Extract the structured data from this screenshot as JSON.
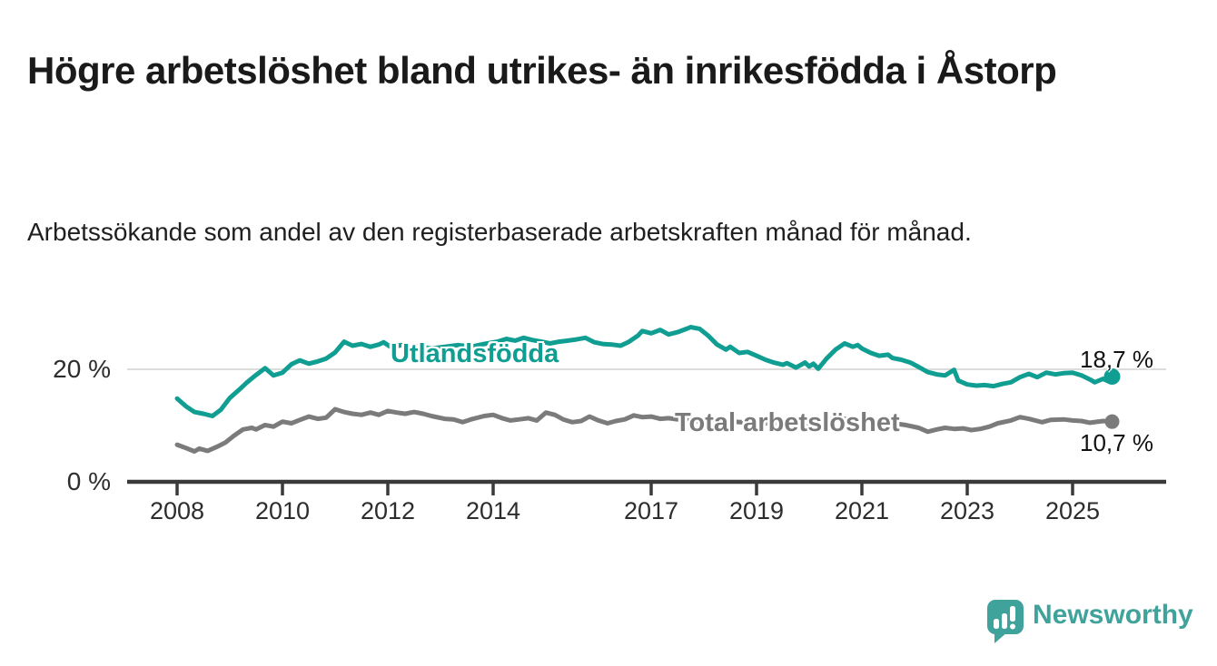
{
  "header": {
    "title": "Högre arbetslöshet bland utrikes- än inrikesfödda i Åstorp",
    "subtitle": "Arbetssökande som andel av den registerbaserade arbetskraften månad för månad."
  },
  "footer": {
    "brand": "Newsworthy"
  },
  "colors": {
    "series_foreign": "#119e92",
    "series_total": "#7b7b7b",
    "axis": "#3a3a3a",
    "gridline": "#dcdcdc",
    "title_text": "#1a1a1a",
    "logo_teal": "#3fa29b"
  },
  "chart_data": {
    "type": "line",
    "title": "Högre arbetslöshet bland utrikes- än inrikesfödda i Åstorp",
    "subtitle": "Arbetssökande som andel av den registerbaserade arbetskraften månad för månad.",
    "unit": "%",
    "xlim": [
      2007.6,
      2026.3
    ],
    "ylim": [
      0,
      30
    ],
    "grid": "y-20-only",
    "legend_position": "inline-on-lines",
    "x_ticks": [
      {
        "label": "2008",
        "year": 2008
      },
      {
        "label": "2010",
        "year": 2010
      },
      {
        "label": "2012",
        "year": 2012
      },
      {
        "label": "2014",
        "year": 2014
      },
      {
        "label": "2017",
        "year": 2017
      },
      {
        "label": "2019",
        "year": 2019
      },
      {
        "label": "2021",
        "year": 2021
      },
      {
        "label": "2023",
        "year": 2023
      },
      {
        "label": "2025",
        "year": 2025
      }
    ],
    "y_ticks": [
      {
        "label": "0 %",
        "value": 0
      },
      {
        "label": "20 %",
        "value": 20
      }
    ],
    "series": [
      {
        "name": "Utlandsfödda",
        "color_key": "series_foreign",
        "end_label": "18,7 %",
        "end_value": 18.7,
        "points": [
          [
            2008.0,
            14.8
          ],
          [
            2008.17,
            13.4
          ],
          [
            2008.33,
            12.4
          ],
          [
            2008.5,
            12.1
          ],
          [
            2008.67,
            11.7
          ],
          [
            2008.83,
            12.8
          ],
          [
            2009.0,
            14.9
          ],
          [
            2009.17,
            16.3
          ],
          [
            2009.33,
            17.7
          ],
          [
            2009.5,
            19.0
          ],
          [
            2009.67,
            20.2
          ],
          [
            2009.83,
            18.9
          ],
          [
            2010.0,
            19.4
          ],
          [
            2010.17,
            20.9
          ],
          [
            2010.33,
            21.6
          ],
          [
            2010.5,
            21.0
          ],
          [
            2010.67,
            21.4
          ],
          [
            2010.83,
            21.9
          ],
          [
            2011.0,
            23.0
          ],
          [
            2011.17,
            24.9
          ],
          [
            2011.33,
            24.2
          ],
          [
            2011.5,
            24.5
          ],
          [
            2011.67,
            24.0
          ],
          [
            2011.83,
            24.4
          ],
          [
            2011.92,
            24.8
          ],
          [
            2012.08,
            23.8
          ],
          [
            2012.25,
            24.3
          ],
          [
            2012.42,
            23.9
          ],
          [
            2012.58,
            24.1
          ],
          [
            2012.83,
            23.7
          ],
          [
            2013.08,
            24.0
          ],
          [
            2013.33,
            24.3
          ],
          [
            2013.58,
            24.0
          ],
          [
            2013.83,
            24.5
          ],
          [
            2014.08,
            24.9
          ],
          [
            2014.25,
            25.4
          ],
          [
            2014.42,
            25.1
          ],
          [
            2014.58,
            25.6
          ],
          [
            2014.75,
            25.2
          ],
          [
            2014.92,
            24.9
          ],
          [
            2015.08,
            24.6
          ],
          [
            2015.25,
            24.9
          ],
          [
            2015.42,
            25.1
          ],
          [
            2015.58,
            25.3
          ],
          [
            2015.75,
            25.6
          ],
          [
            2015.92,
            24.8
          ],
          [
            2016.08,
            24.5
          ],
          [
            2016.25,
            24.4
          ],
          [
            2016.42,
            24.2
          ],
          [
            2016.58,
            24.9
          ],
          [
            2016.75,
            26.0
          ],
          [
            2016.83,
            26.8
          ],
          [
            2017.0,
            26.4
          ],
          [
            2017.17,
            27.0
          ],
          [
            2017.33,
            26.2
          ],
          [
            2017.5,
            26.6
          ],
          [
            2017.67,
            27.2
          ],
          [
            2017.75,
            27.5
          ],
          [
            2017.92,
            27.2
          ],
          [
            2018.08,
            26.0
          ],
          [
            2018.25,
            24.4
          ],
          [
            2018.42,
            23.5
          ],
          [
            2018.5,
            24.0
          ],
          [
            2018.67,
            22.9
          ],
          [
            2018.83,
            23.1
          ],
          [
            2019.0,
            22.4
          ],
          [
            2019.17,
            21.7
          ],
          [
            2019.33,
            21.2
          ],
          [
            2019.5,
            20.8
          ],
          [
            2019.58,
            21.1
          ],
          [
            2019.75,
            20.3
          ],
          [
            2019.92,
            21.2
          ],
          [
            2020.0,
            20.5
          ],
          [
            2020.08,
            21.0
          ],
          [
            2020.17,
            20.1
          ],
          [
            2020.33,
            21.9
          ],
          [
            2020.5,
            23.5
          ],
          [
            2020.67,
            24.6
          ],
          [
            2020.83,
            24.0
          ],
          [
            2020.92,
            24.3
          ],
          [
            2021.0,
            23.7
          ],
          [
            2021.17,
            22.9
          ],
          [
            2021.33,
            22.4
          ],
          [
            2021.5,
            22.6
          ],
          [
            2021.58,
            22.0
          ],
          [
            2021.75,
            21.7
          ],
          [
            2021.92,
            21.2
          ],
          [
            2022.08,
            20.4
          ],
          [
            2022.25,
            19.5
          ],
          [
            2022.42,
            19.1
          ],
          [
            2022.58,
            18.9
          ],
          [
            2022.75,
            19.9
          ],
          [
            2022.83,
            18.0
          ],
          [
            2023.0,
            17.3
          ],
          [
            2023.17,
            17.1
          ],
          [
            2023.33,
            17.2
          ],
          [
            2023.5,
            17.0
          ],
          [
            2023.67,
            17.4
          ],
          [
            2023.83,
            17.7
          ],
          [
            2024.0,
            18.6
          ],
          [
            2024.17,
            19.2
          ],
          [
            2024.33,
            18.6
          ],
          [
            2024.5,
            19.4
          ],
          [
            2024.67,
            19.1
          ],
          [
            2024.83,
            19.3
          ],
          [
            2025.0,
            19.4
          ],
          [
            2025.17,
            18.9
          ],
          [
            2025.33,
            18.2
          ],
          [
            2025.42,
            17.7
          ],
          [
            2025.58,
            18.3
          ],
          [
            2025.67,
            17.9
          ],
          [
            2025.75,
            18.7
          ]
        ]
      },
      {
        "name": "Total arbetslöshet",
        "color_key": "series_total",
        "end_label": "10,7 %",
        "end_value": 10.7,
        "points": [
          [
            2008.0,
            6.6
          ],
          [
            2008.17,
            6.0
          ],
          [
            2008.33,
            5.4
          ],
          [
            2008.42,
            5.9
          ],
          [
            2008.58,
            5.5
          ],
          [
            2008.75,
            6.2
          ],
          [
            2008.92,
            7.0
          ],
          [
            2009.08,
            8.2
          ],
          [
            2009.25,
            9.3
          ],
          [
            2009.42,
            9.6
          ],
          [
            2009.5,
            9.3
          ],
          [
            2009.67,
            10.1
          ],
          [
            2009.83,
            9.8
          ],
          [
            2010.0,
            10.7
          ],
          [
            2010.17,
            10.4
          ],
          [
            2010.33,
            11.0
          ],
          [
            2010.5,
            11.6
          ],
          [
            2010.67,
            11.2
          ],
          [
            2010.83,
            11.4
          ],
          [
            2011.0,
            12.9
          ],
          [
            2011.17,
            12.4
          ],
          [
            2011.33,
            12.1
          ],
          [
            2011.5,
            11.9
          ],
          [
            2011.67,
            12.3
          ],
          [
            2011.83,
            11.9
          ],
          [
            2012.0,
            12.6
          ],
          [
            2012.17,
            12.3
          ],
          [
            2012.33,
            12.1
          ],
          [
            2012.5,
            12.4
          ],
          [
            2012.67,
            12.1
          ],
          [
            2012.83,
            11.7
          ],
          [
            2013.08,
            11.2
          ],
          [
            2013.25,
            11.1
          ],
          [
            2013.42,
            10.6
          ],
          [
            2013.58,
            11.1
          ],
          [
            2013.83,
            11.7
          ],
          [
            2014.0,
            11.9
          ],
          [
            2014.17,
            11.3
          ],
          [
            2014.33,
            10.9
          ],
          [
            2014.5,
            11.1
          ],
          [
            2014.67,
            11.3
          ],
          [
            2014.83,
            10.9
          ],
          [
            2015.0,
            12.3
          ],
          [
            2015.17,
            11.9
          ],
          [
            2015.33,
            11.1
          ],
          [
            2015.5,
            10.6
          ],
          [
            2015.67,
            10.8
          ],
          [
            2015.83,
            11.6
          ],
          [
            2016.0,
            10.9
          ],
          [
            2016.17,
            10.4
          ],
          [
            2016.33,
            10.8
          ],
          [
            2016.5,
            11.1
          ],
          [
            2016.67,
            11.8
          ],
          [
            2016.83,
            11.5
          ],
          [
            2017.0,
            11.6
          ],
          [
            2017.17,
            11.2
          ],
          [
            2017.33,
            11.3
          ],
          [
            2017.58,
            11.0
          ],
          [
            2017.83,
            10.8
          ],
          [
            2018.08,
            10.6
          ],
          [
            2018.33,
            10.4
          ],
          [
            2018.58,
            10.7
          ],
          [
            2018.83,
            10.5
          ],
          [
            2019.08,
            10.3
          ],
          [
            2019.33,
            10.5
          ],
          [
            2019.58,
            10.4
          ],
          [
            2019.83,
            10.2
          ],
          [
            2020.08,
            10.6
          ],
          [
            2020.33,
            11.1
          ],
          [
            2020.58,
            11.3
          ],
          [
            2020.83,
            11.0
          ],
          [
            2021.08,
            10.8
          ],
          [
            2021.33,
            10.6
          ],
          [
            2021.58,
            10.4
          ],
          [
            2021.83,
            10.1
          ],
          [
            2022.08,
            9.6
          ],
          [
            2022.25,
            8.9
          ],
          [
            2022.42,
            9.3
          ],
          [
            2022.58,
            9.6
          ],
          [
            2022.75,
            9.4
          ],
          [
            2022.92,
            9.5
          ],
          [
            2023.08,
            9.2
          ],
          [
            2023.25,
            9.4
          ],
          [
            2023.42,
            9.8
          ],
          [
            2023.58,
            10.4
          ],
          [
            2023.83,
            10.9
          ],
          [
            2024.0,
            11.5
          ],
          [
            2024.17,
            11.2
          ],
          [
            2024.42,
            10.6
          ],
          [
            2024.58,
            11.0
          ],
          [
            2024.83,
            11.1
          ],
          [
            2025.0,
            10.9
          ],
          [
            2025.17,
            10.8
          ],
          [
            2025.33,
            10.5
          ],
          [
            2025.58,
            10.8
          ],
          [
            2025.75,
            10.7
          ]
        ]
      }
    ]
  }
}
